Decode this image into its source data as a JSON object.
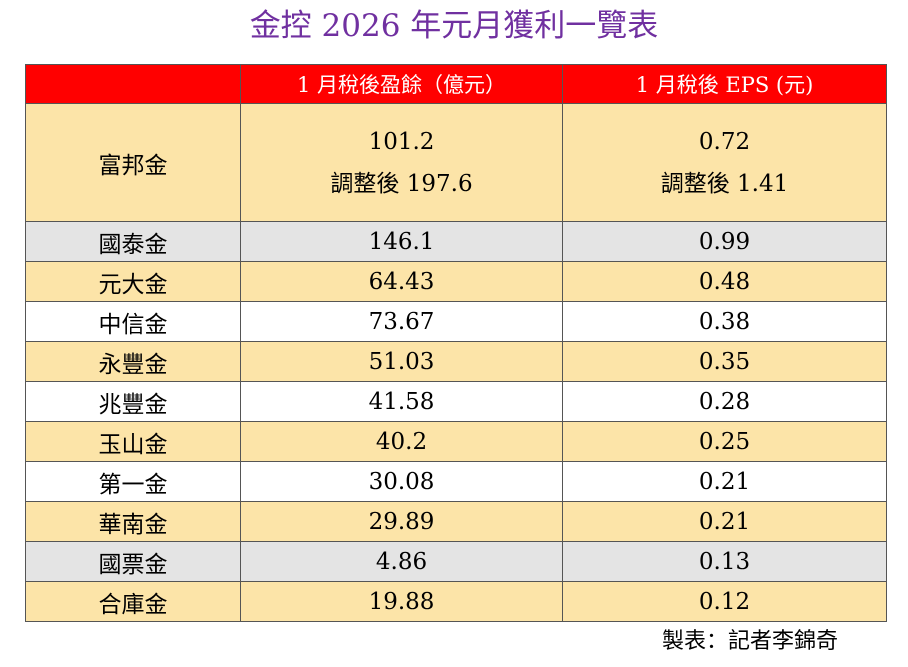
{
  "title": "金控 2026 年元月獲利一覽表",
  "columns": {
    "company": "",
    "profit": "1 月稅後盈餘（億元）",
    "eps": "1 月稅後 EPS (元)"
  },
  "first_row": {
    "company": "富邦金",
    "profit": "101.2",
    "profit_adjusted": "調整後 197.6",
    "eps": "0.72",
    "eps_adjusted": "調整後  1.41"
  },
  "rows": [
    {
      "company": "國泰金",
      "profit": "146.1",
      "eps": "0.99"
    },
    {
      "company": "元大金",
      "profit": "64.43",
      "eps": "0.48"
    },
    {
      "company": "中信金",
      "profit": "73.67",
      "eps": "0.38"
    },
    {
      "company": "永豐金",
      "profit": "51.03",
      "eps": "0.35"
    },
    {
      "company": "兆豐金",
      "profit": "41.58",
      "eps": "0.28"
    },
    {
      "company": "玉山金",
      "profit": "40.2",
      "eps": "0.25"
    },
    {
      "company": "第一金",
      "profit": "30.08",
      "eps": "0.21"
    },
    {
      "company": "華南金",
      "profit": "29.89",
      "eps": "0.21"
    },
    {
      "company": "國票金",
      "profit": "4.86",
      "eps": "0.13"
    },
    {
      "company": "合庫金",
      "profit": "19.88",
      "eps": "0.12"
    }
  ],
  "credit": "製表：記者李錦奇",
  "colors": {
    "title": "#7030a0",
    "header_bg": "#ff0000",
    "header_text": "#ffffff",
    "row_gold": "#fce4a8",
    "row_gray": "#e4e4e4",
    "row_white": "#ffffff"
  }
}
